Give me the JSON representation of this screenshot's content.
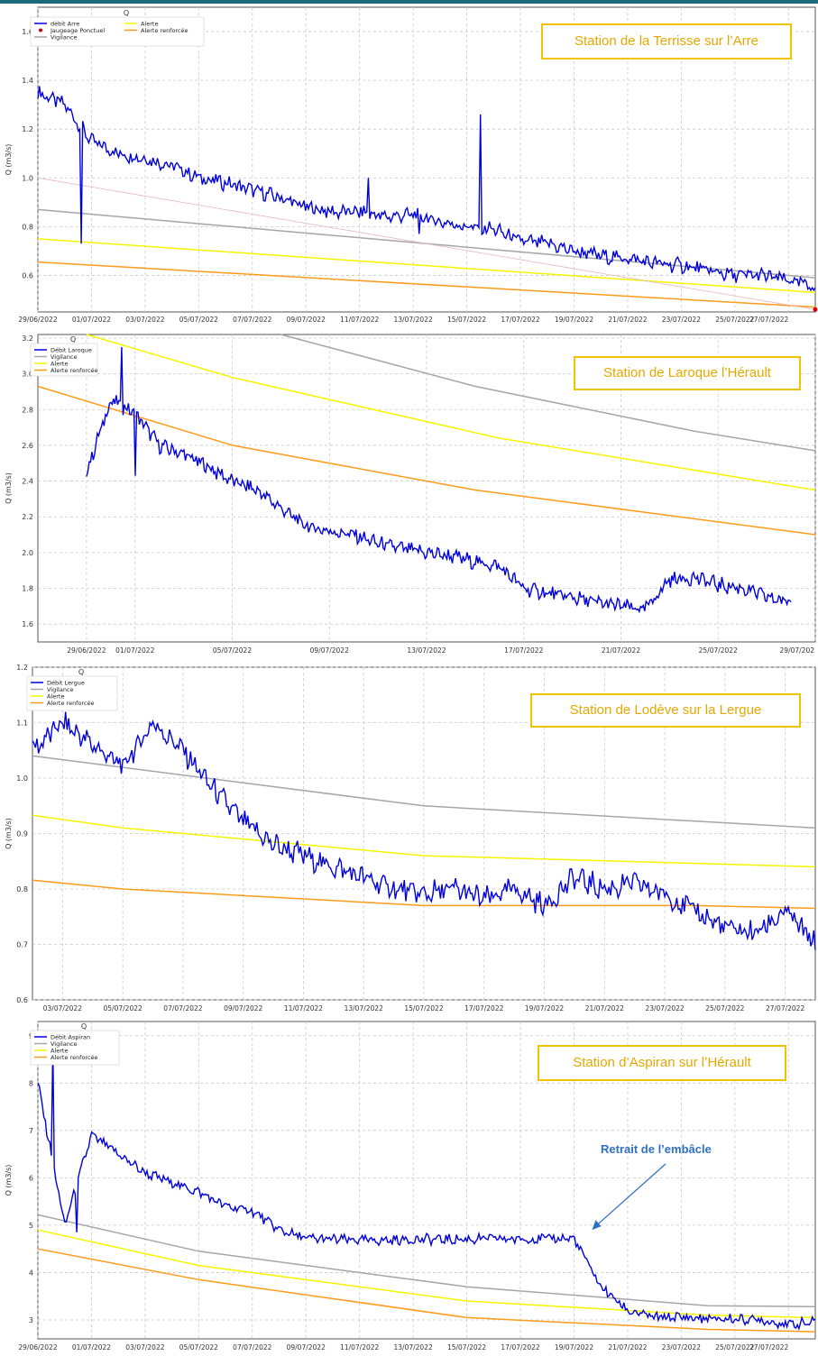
{
  "colors": {
    "flow": "#0000dd",
    "vigilance": "#a6a6a6",
    "alerte": "#f5f500",
    "renforcee": "#ff9a1a",
    "grid": "#c8c8c8",
    "station_box": "#f2c200",
    "station_text": "#e6a800",
    "annotation": "#2f6fc4",
    "jaugeage": "#cc0000"
  },
  "chart_data": [
    {
      "type": "line",
      "station": "Station de la Terrisse sur l’Arre",
      "title": "Q",
      "ylabel": "Q (m3/s)",
      "xlabel": "",
      "xlim": [
        "29/06/2022",
        "28/07/2022"
      ],
      "ylim": [
        0.45,
        1.7
      ],
      "yticks": [
        "0.6",
        "0.8",
        "1.0",
        "1.2",
        "1.4",
        "1.6"
      ],
      "xticks": [
        "29/06/2022",
        "01/07/2022",
        "03/07/2022",
        "05/07/2022",
        "07/07/2022",
        "09/07/2022",
        "11/07/2022",
        "13/07/2022",
        "15/07/2022",
        "17/07/2022",
        "19/07/2022",
        "21/07/2022",
        "23/07/2022",
        "25/07/2022",
        "27/07/2022"
      ],
      "legend": [
        "débit Arre",
        "Jaugeage Ponctuel",
        "Vigilance",
        "Alerte",
        "Alerte renforcée"
      ],
      "series": [
        {
          "name": "débit Arre",
          "role": "flow",
          "x": [
            "29/06/2022",
            "30/06/2022",
            "01/07/2022",
            "02/07/2022",
            "03/07/2022",
            "04/07/2022",
            "05/07/2022",
            "06/07/2022",
            "07/07/2022",
            "08/07/2022",
            "09/07/2022",
            "10/07/2022",
            "11/07/2022",
            "12/07/2022",
            "13/07/2022",
            "14/07/2022",
            "15/07/2022",
            "16/07/2022",
            "17/07/2022",
            "18/07/2022",
            "19/07/2022",
            "20/07/2022",
            "21/07/2022",
            "22/07/2022",
            "23/07/2022",
            "24/07/2022",
            "25/07/2022",
            "26/07/2022",
            "27/07/2022",
            "28/07/2022"
          ],
          "y": [
            1.35,
            1.3,
            1.15,
            1.1,
            1.08,
            1.05,
            1.0,
            0.98,
            0.95,
            0.92,
            0.88,
            0.86,
            0.86,
            0.84,
            0.85,
            0.82,
            0.8,
            0.79,
            0.74,
            0.73,
            0.7,
            0.68,
            0.67,
            0.65,
            0.64,
            0.62,
            0.6,
            0.6,
            0.58,
            0.55
          ]
        },
        {
          "name": "Vigilance",
          "role": "vigilance",
          "x": [
            "29/06/2022",
            "28/07/2022"
          ],
          "y": [
            0.87,
            0.59
          ]
        },
        {
          "name": "Alerte",
          "role": "alerte",
          "x": [
            "29/06/2022",
            "28/07/2022"
          ],
          "y": [
            0.75,
            0.53
          ]
        },
        {
          "name": "Alerte renforcée",
          "role": "renforcee",
          "x": [
            "29/06/2022",
            "28/07/2022"
          ],
          "y": [
            0.655,
            0.47
          ]
        },
        {
          "name": "",
          "role": "trend",
          "x": [
            "29/06/2022",
            "28/07/2022"
          ],
          "y": [
            1.0,
            0.46
          ]
        }
      ],
      "points": [
        {
          "name": "Jaugeage Ponctuel",
          "x": "28/07/2022",
          "y": 0.46
        }
      ]
    },
    {
      "type": "line",
      "station": "Station de Laroque l’Hérault",
      "title": "Q",
      "ylabel": "Q (m3/s)",
      "xlabel": "",
      "xlim": [
        "27/06/2022",
        "29/07/2022"
      ],
      "ylim": [
        1.5,
        3.22
      ],
      "yticks": [
        "1.6",
        "1.8",
        "2.0",
        "2.2",
        "2.4",
        "2.6",
        "2.8",
        "3.0",
        "3.2"
      ],
      "xticks": [
        "29/06/2022",
        "01/07/2022",
        "05/07/2022",
        "09/07/2022",
        "13/07/2022",
        "17/07/2022",
        "21/07/2022",
        "25/07/2022",
        "29/07/202"
      ],
      "legend": [
        "Débit Laroque",
        "Vigilance",
        "Alerte",
        "Alerte renforcée"
      ],
      "series": [
        {
          "name": "Débit Laroque",
          "role": "flow",
          "x": [
            "29/06/2022",
            "30/06/2022",
            "01/07/2022",
            "02/07/2022",
            "03/07/2022",
            "04/07/2022",
            "05/07/2022",
            "06/07/2022",
            "07/07/2022",
            "08/07/2022",
            "09/07/2022",
            "10/07/2022",
            "11/07/2022",
            "12/07/2022",
            "13/07/2022",
            "14/07/2022",
            "15/07/2022",
            "16/07/2022",
            "17/07/2022",
            "18/07/2022",
            "19/07/2022",
            "20/07/2022",
            "21/07/2022",
            "22/07/2022",
            "23/07/2022",
            "24/07/2022",
            "25/07/2022",
            "26/07/2022",
            "27/07/2022",
            "28/07/2022"
          ],
          "y": [
            2.45,
            2.85,
            2.78,
            2.6,
            2.55,
            2.48,
            2.4,
            2.35,
            2.25,
            2.15,
            2.12,
            2.1,
            2.05,
            2.02,
            2.0,
            1.98,
            1.95,
            1.92,
            1.8,
            1.77,
            1.75,
            1.72,
            1.7,
            1.68,
            1.85,
            1.86,
            1.82,
            1.8,
            1.75,
            1.72
          ]
        },
        {
          "name": "Vigilance",
          "role": "vigilance",
          "x": [
            "07/07/2022",
            "15/07/2022",
            "24/07/2022",
            "29/07/2022"
          ],
          "y": [
            3.22,
            2.93,
            2.68,
            2.57
          ]
        },
        {
          "name": "Alerte",
          "role": "alerte",
          "x": [
            "29/06/2022",
            "05/07/2022",
            "16/07/2022",
            "29/07/2022"
          ],
          "y": [
            3.22,
            2.98,
            2.64,
            2.35
          ]
        },
        {
          "name": "Alerte renforcée",
          "role": "renforcee",
          "x": [
            "27/06/2022",
            "05/07/2022",
            "15/07/2022",
            "29/07/2022"
          ],
          "y": [
            2.93,
            2.6,
            2.35,
            2.1
          ]
        }
      ]
    },
    {
      "type": "line",
      "station": "Station de Lodève sur la Lergue",
      "title": "Q",
      "ylabel": "Q (m3/s)",
      "xlabel": "",
      "xlim": [
        "02/07/2022",
        "28/07/2022"
      ],
      "ylim": [
        0.6,
        1.2
      ],
      "yticks": [
        "0.6",
        "0.7",
        "0.8",
        "0.9",
        "1.0",
        "1.1",
        "1.2"
      ],
      "xticks": [
        "03/07/2022",
        "05/07/2022",
        "07/07/2022",
        "09/07/2022",
        "11/07/2022",
        "13/07/2022",
        "15/07/2022",
        "17/07/2022",
        "19/07/2022",
        "21/07/2022",
        "23/07/2022",
        "25/07/2022",
        "27/07/2022"
      ],
      "legend": [
        "Débit Lergue",
        "Vigilance",
        "Alerte",
        "Alerte renforcée"
      ],
      "series": [
        {
          "name": "Débit Lergue",
          "role": "flow",
          "x": [
            "02/07/2022",
            "03/07/2022",
            "04/07/2022",
            "05/07/2022",
            "06/07/2022",
            "07/07/2022",
            "08/07/2022",
            "09/07/2022",
            "10/07/2022",
            "11/07/2022",
            "12/07/2022",
            "13/07/2022",
            "14/07/2022",
            "15/07/2022",
            "16/07/2022",
            "17/07/2022",
            "18/07/2022",
            "19/07/2022",
            "20/07/2022",
            "21/07/2022",
            "22/07/2022",
            "23/07/2022",
            "24/07/2022",
            "25/07/2022",
            "26/07/2022",
            "27/07/2022",
            "28/07/2022"
          ],
          "y": [
            1.05,
            1.1,
            1.06,
            1.02,
            1.1,
            1.05,
            0.98,
            0.92,
            0.88,
            0.86,
            0.84,
            0.82,
            0.8,
            0.79,
            0.8,
            0.78,
            0.8,
            0.77,
            0.82,
            0.8,
            0.81,
            0.79,
            0.76,
            0.73,
            0.72,
            0.76,
            0.7
          ]
        },
        {
          "name": "Vigilance",
          "role": "vigilance",
          "x": [
            "02/07/2022",
            "15/07/2022",
            "28/07/2022"
          ],
          "y": [
            1.04,
            0.95,
            0.91
          ]
        },
        {
          "name": "Alerte",
          "role": "alerte",
          "x": [
            "02/07/2022",
            "05/07/2022",
            "15/07/2022",
            "28/07/2022"
          ],
          "y": [
            0.933,
            0.91,
            0.86,
            0.84
          ]
        },
        {
          "name": "Alerte renforcée",
          "role": "renforcee",
          "x": [
            "02/07/2022",
            "05/07/2022",
            "15/07/2022",
            "24/07/2022",
            "28/07/2022"
          ],
          "y": [
            0.816,
            0.8,
            0.77,
            0.77,
            0.765
          ]
        }
      ]
    },
    {
      "type": "line",
      "station": "Station d’Aspiran sur l’Hérault",
      "title": "Q",
      "ylabel": "Q (m3/s)",
      "xlabel": "",
      "xlim": [
        "29/06/2022",
        "28/07/2022"
      ],
      "ylim": [
        2.6,
        9.3
      ],
      "yticks": [
        "3",
        "4",
        "5",
        "6",
        "7",
        "8",
        "9"
      ],
      "xticks": [
        "29/06/2022",
        "01/07/2022",
        "03/07/2022",
        "05/07/2022",
        "07/07/2022",
        "09/07/2022",
        "11/07/2022",
        "13/07/2022",
        "15/07/2022",
        "17/07/2022",
        "19/07/2022",
        "21/07/2022",
        "23/07/2022",
        "25/07/2022",
        "27/07/2022"
      ],
      "legend": [
        "Débit Aspiran",
        "Vigilance",
        "Alerte",
        "Alerte renforcée"
      ],
      "annotation": {
        "text": "Retrait de l’embâcle",
        "x": "19/07/2022",
        "y": 4.9
      },
      "series": [
        {
          "name": "Débit Aspiran",
          "role": "flow",
          "x": [
            "29/06/2022",
            "30/06/2022",
            "01/07/2022",
            "02/07/2022",
            "03/07/2022",
            "04/07/2022",
            "05/07/2022",
            "06/07/2022",
            "07/07/2022",
            "08/07/2022",
            "09/07/2022",
            "10/07/2022",
            "11/07/2022",
            "12/07/2022",
            "13/07/2022",
            "14/07/2022",
            "15/07/2022",
            "16/07/2022",
            "17/07/2022",
            "18/07/2022",
            "19/07/2022",
            "20/07/2022",
            "21/07/2022",
            "22/07/2022",
            "23/07/2022",
            "24/07/2022",
            "25/07/2022",
            "26/07/2022",
            "27/07/2022",
            "28/07/2022"
          ],
          "y": [
            8.0,
            5.0,
            6.9,
            6.5,
            6.1,
            5.9,
            5.7,
            5.4,
            5.3,
            4.9,
            4.72,
            4.7,
            4.68,
            4.68,
            4.7,
            4.7,
            4.7,
            4.72,
            4.7,
            4.72,
            4.72,
            3.7,
            3.2,
            3.05,
            3.06,
            3.02,
            3.02,
            3.0,
            2.9,
            2.95
          ]
        },
        {
          "name": "Vigilance",
          "role": "vigilance",
          "x": [
            "29/06/2022",
            "05/07/2022",
            "15/07/2022",
            "24/07/2022",
            "28/07/2022"
          ],
          "y": [
            5.22,
            4.45,
            3.7,
            3.3,
            3.28
          ]
        },
        {
          "name": "Alerte",
          "role": "alerte",
          "x": [
            "29/06/2022",
            "05/07/2022",
            "15/07/2022",
            "24/07/2022",
            "28/07/2022"
          ],
          "y": [
            4.9,
            4.15,
            3.4,
            3.1,
            3.05
          ]
        },
        {
          "name": "Alerte renforcée",
          "role": "renforcee",
          "x": [
            "29/06/2022",
            "05/07/2022",
            "15/07/2022",
            "24/07/2022",
            "28/07/2022"
          ],
          "y": [
            4.5,
            3.85,
            3.05,
            2.8,
            2.75
          ]
        }
      ]
    }
  ]
}
